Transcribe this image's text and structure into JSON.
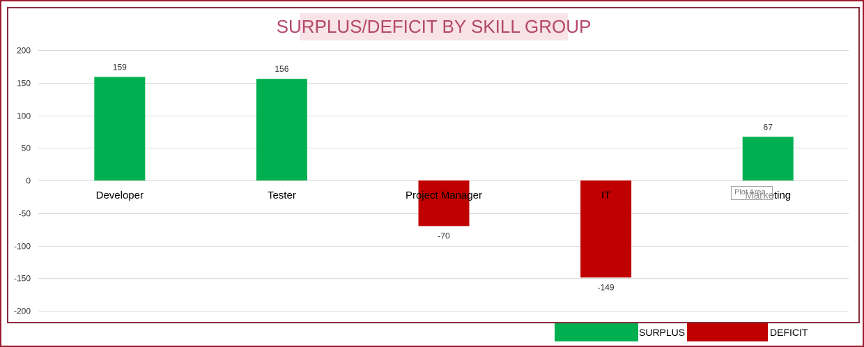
{
  "chart_data": {
    "type": "bar",
    "title": "SURPLUS/DEFICIT BY SKILL GROUP",
    "categories": [
      "Developer",
      "Tester",
      "Project Manager",
      "IT",
      "Marketing"
    ],
    "values": [
      159,
      156,
      -70,
      -149,
      67
    ],
    "ylim": [
      -200,
      200
    ],
    "yticks": [
      200,
      150,
      100,
      50,
      0,
      -50,
      -100,
      -150,
      -200
    ],
    "grid": true,
    "legend_position": "bottom-right",
    "legend": [
      {
        "name": "SURPLUS",
        "color": "#00b050"
      },
      {
        "name": "DEFICIT",
        "color": "#c00000"
      }
    ],
    "colors": {
      "positive": "#00b050",
      "negative": "#c00000"
    }
  },
  "tooltip_text": "Plot Area"
}
